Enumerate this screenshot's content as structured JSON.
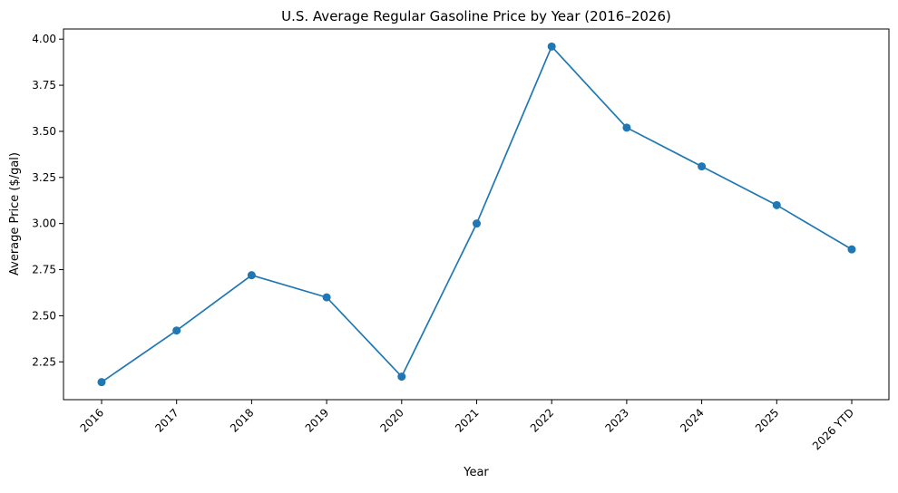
{
  "chart_data": {
    "type": "line",
    "title": "U.S. Average Regular Gasoline Price by Year (2016–2026)",
    "xlabel": "Year",
    "ylabel": "Average Price ($/gal)",
    "categories": [
      "2016",
      "2017",
      "2018",
      "2019",
      "2020",
      "2021",
      "2022",
      "2023",
      "2024",
      "2025",
      "2026 YTD"
    ],
    "series": [
      {
        "name": "Average Regular Gasoline Price",
        "values": [
          2.14,
          2.42,
          2.72,
          2.6,
          2.17,
          3.0,
          3.96,
          3.52,
          3.31,
          3.1,
          2.86
        ],
        "color": "#1f77b4",
        "marker": "circle"
      }
    ],
    "ylim": [
      2.045,
      4.055
    ],
    "yticks": [
      2.25,
      2.5,
      2.75,
      3.0,
      3.25,
      3.5,
      3.75,
      4.0
    ],
    "ytick_labels": [
      "2.25",
      "2.50",
      "2.75",
      "3.00",
      "3.25",
      "3.50",
      "3.75",
      "4.00"
    ],
    "grid": false,
    "legend": "none",
    "xtick_rotation_deg": 45
  }
}
